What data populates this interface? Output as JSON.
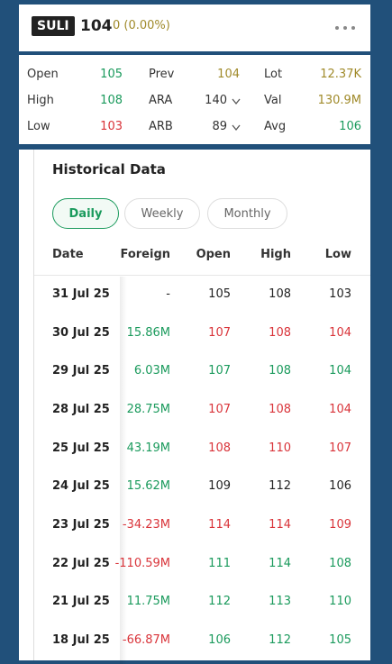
{
  "header": {
    "symbol": "SULI",
    "price": "104",
    "change": "0 (0.00%)"
  },
  "stats": [
    {
      "label": "Open",
      "value": "105",
      "color": "#1a9a5c"
    },
    {
      "label": "Prev",
      "value": "104",
      "color": "#a08a2a"
    },
    {
      "label": "Lot",
      "value": "12.37K",
      "color": "#a08a2a"
    },
    {
      "label": "High",
      "value": "108",
      "color": "#1a9a5c"
    },
    {
      "label": "ARA",
      "value": "140",
      "color": "#333333"
    },
    {
      "label": "Val",
      "value": "130.9M",
      "color": "#a08a2a"
    },
    {
      "label": "Low",
      "value": "103",
      "color": "#d9343a"
    },
    {
      "label": "ARB",
      "value": "89",
      "color": "#333333"
    },
    {
      "label": "Avg",
      "value": "106",
      "color": "#1a9a5c"
    }
  ],
  "historical": {
    "title": "Historical Data",
    "tabs": [
      "Daily",
      "Weekly",
      "Monthly"
    ],
    "table": {
      "columns": [
        "Date",
        "Foreign",
        "Open",
        "High",
        "Low"
      ],
      "rows": [
        {
          "cells": [
            "31 Jul 25",
            "-",
            "105",
            "108",
            "103"
          ],
          "colors": [
            "#222222",
            "#222222",
            "#222222",
            "#222222"
          ]
        },
        {
          "cells": [
            "30 Jul 25",
            "15.86M",
            "107",
            "108",
            "104"
          ],
          "colors": [
            "#1a9a5c",
            "#d9343a",
            "#d9343a",
            "#d9343a"
          ]
        },
        {
          "cells": [
            "29 Jul 25",
            "6.03M",
            "107",
            "108",
            "104"
          ],
          "colors": [
            "#1a9a5c",
            "#1a9a5c",
            "#1a9a5c",
            "#1a9a5c"
          ]
        },
        {
          "cells": [
            "28 Jul 25",
            "28.75M",
            "107",
            "108",
            "104"
          ],
          "colors": [
            "#1a9a5c",
            "#d9343a",
            "#d9343a",
            "#d9343a"
          ]
        },
        {
          "cells": [
            "25 Jul 25",
            "43.19M",
            "108",
            "110",
            "107"
          ],
          "colors": [
            "#1a9a5c",
            "#d9343a",
            "#d9343a",
            "#d9343a"
          ]
        },
        {
          "cells": [
            "24 Jul 25",
            "15.62M",
            "109",
            "112",
            "106"
          ],
          "colors": [
            "#1a9a5c",
            "#222222",
            "#222222",
            "#222222"
          ]
        },
        {
          "cells": [
            "23 Jul 25",
            "-34.23M",
            "114",
            "114",
            "109"
          ],
          "colors": [
            "#d9343a",
            "#d9343a",
            "#d9343a",
            "#d9343a"
          ]
        },
        {
          "cells": [
            "22 Jul 25",
            "-110.59M",
            "111",
            "114",
            "108"
          ],
          "colors": [
            "#d9343a",
            "#1a9a5c",
            "#1a9a5c",
            "#1a9a5c"
          ]
        },
        {
          "cells": [
            "21 Jul 25",
            "11.75M",
            "112",
            "113",
            "110"
          ],
          "colors": [
            "#1a9a5c",
            "#1a9a5c",
            "#1a9a5c",
            "#1a9a5c"
          ]
        },
        {
          "cells": [
            "18 Jul 25",
            "-66.87M",
            "106",
            "112",
            "105"
          ],
          "colors": [
            "#d9343a",
            "#1a9a5c",
            "#1a9a5c",
            "#1a9a5c"
          ]
        }
      ]
    }
  }
}
